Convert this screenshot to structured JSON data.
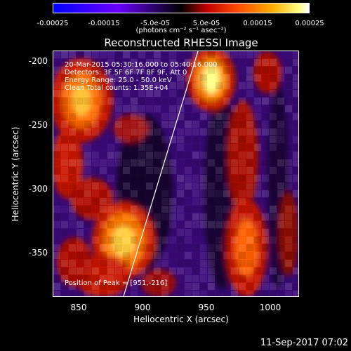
{
  "colorbar": {
    "ticks": [
      "-0.00025",
      "-0.00015",
      "-5.0e-05",
      "5.0e-05",
      "0.00015",
      "0.00025"
    ],
    "unit_label": "(photons cm⁻² s⁻¹ asec⁻²)",
    "range": [
      -0.00025,
      0.00025
    ]
  },
  "title": "Reconstructed RHESSI Image",
  "annotations": {
    "time": "20-Mar-2015 05:30:16.000 to 05:40:16.000",
    "detectors": "Detectors: 3F 5F 6F 7F 8F 9F, Att 0",
    "energy": "Energy Range: 25.0 - 50.0 keV",
    "clean": "Clean    Total counts: 1.35E+04",
    "peak": "Position of Peak = [951,-216]"
  },
  "axes": {
    "xlabel": "Heliocentric X (arcsec)",
    "ylabel": "Heliocentric Y (arcsec)",
    "xlim": [
      830,
      1020
    ],
    "ylim": [
      -385,
      -192
    ],
    "xticks": [
      "850",
      "900",
      "950",
      "1000"
    ],
    "yticks": [
      "-200",
      "-250",
      "-300",
      "-350"
    ]
  },
  "timestamp": "11-Sep-2017 07:02"
}
